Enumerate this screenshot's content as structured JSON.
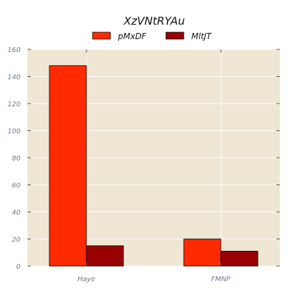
{
  "chart_data": {
    "type": "bar",
    "title": "XzVNtRYAu",
    "categories": [
      "Haye",
      "FMNP"
    ],
    "series": [
      {
        "name": "pMxDF",
        "values": [
          148,
          20
        ],
        "color": "#ff2a00"
      },
      {
        "name": "MltJT",
        "values": [
          15,
          11
        ],
        "color": "#990000"
      }
    ],
    "ylim": [
      0,
      160
    ],
    "yticks": [
      0,
      20,
      40,
      60,
      80,
      100,
      120,
      140,
      160
    ],
    "xlabel": "",
    "ylabel": "",
    "grid": true,
    "legend_position": "top-center",
    "background_color": "#efe6d4"
  }
}
